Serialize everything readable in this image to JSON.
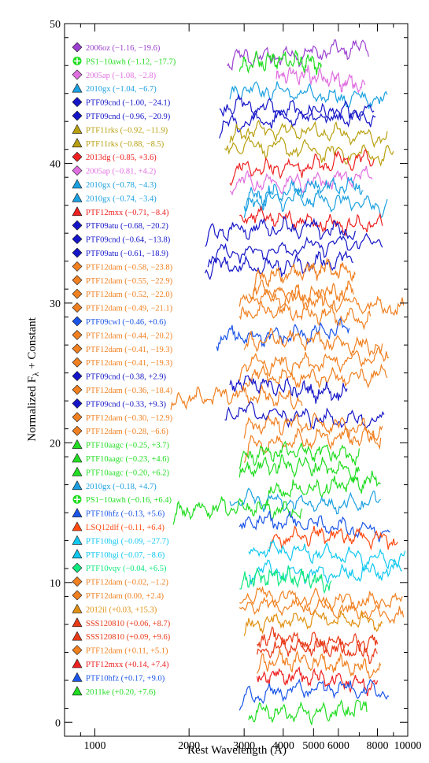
{
  "chart_data": {
    "type": "line",
    "title": "",
    "xlabel": "Rest Wavelength (Å)",
    "ylabel": "Normalized F",
    "ylabel_sub": "λ",
    "ylabel_suffix": " + Constant",
    "x_scale": "log",
    "xlim": [
      800,
      10000
    ],
    "ylim": [
      -1,
      50
    ],
    "x_ticks": [
      1000,
      2000,
      3000,
      4000,
      5000,
      6000,
      8000,
      10000
    ],
    "x_tick_labels": [
      "1000",
      "2000",
      "3000",
      "4000",
      "5000",
      "6000",
      "8000",
      "10000"
    ],
    "y_ticks": [
      0,
      10,
      20,
      30,
      40,
      50
    ],
    "y_tick_labels": [
      "0",
      "10",
      "20",
      "30",
      "40",
      "50"
    ],
    "legend_placement": "left",
    "series": [
      {
        "label": "2006oz (−1.16, −19.6)",
        "color": "#9b40d0",
        "marker": "diamond",
        "y": 48.0,
        "x_range": [
          2650,
          7500
        ]
      },
      {
        "label": "PS1−10awh (−1.12, −17.7)",
        "color": "#22dd22",
        "marker": "cross",
        "y": 47.0,
        "x_range": [
          2900,
          5300
        ]
      },
      {
        "label": "2005ap (−1.08, −2.8)",
        "color": "#e070e0",
        "marker": "diamond",
        "y": 46.0,
        "x_range": [
          3800,
          7300
        ]
      },
      {
        "label": "2010gx (−1.04, −6.7)",
        "color": "#1aa0e0",
        "marker": "triangle",
        "y": 45.0,
        "x_range": [
          2700,
          8600
        ]
      },
      {
        "label": "PTF09cnd (−1.00, −24.1)",
        "color": "#1515c8",
        "marker": "diamond",
        "y": 44.0,
        "x_range": [
          2500,
          7800
        ]
      },
      {
        "label": "PTF09cnd (−0.96, −20.9)",
        "color": "#1515c8",
        "marker": "diamond",
        "y": 43.0,
        "x_range": [
          2500,
          7900
        ]
      },
      {
        "label": "PTF11rks (−0.92, −11.9)",
        "color": "#b8a010",
        "marker": "triangle",
        "y": 42.0,
        "x_range": [
          2700,
          8600
        ]
      },
      {
        "label": "PTF11rks (−0.88, −8.5)",
        "color": "#b8a010",
        "marker": "triangle",
        "y": 41.0,
        "x_range": [
          2600,
          9000
        ]
      },
      {
        "label": "2013dg (−0.85, +3.6)",
        "color": "#ee2020",
        "marker": "diamond",
        "y": 40.0,
        "x_range": [
          2700,
          7800
        ]
      },
      {
        "label": "2005ap (−0.81, +4.2)",
        "color": "#e070e0",
        "marker": "diamond",
        "y": 39.0,
        "x_range": [
          2700,
          7700
        ]
      },
      {
        "label": "2010gx (−0.78, −4.3)",
        "color": "#1aa0e0",
        "marker": "triangle",
        "y": 38.0,
        "x_range": [
          3000,
          7200
        ]
      },
      {
        "label": "2010gx (−0.74, −3.4)",
        "color": "#1aa0e0",
        "marker": "triangle",
        "y": 37.0,
        "x_range": [
          3000,
          8600
        ]
      },
      {
        "label": "PTF12mxx (−0.71, −8.4)",
        "color": "#ee2020",
        "marker": "triangle",
        "y": 36.0,
        "x_range": [
          2900,
          8300
        ]
      },
      {
        "label": "PTF09atu (−0.68, −20.2)",
        "color": "#1515c8",
        "marker": "diamond",
        "y": 35.0,
        "x_range": [
          2250,
          6800
        ]
      },
      {
        "label": "PTF09cnd (−0.64, −13.8)",
        "color": "#1515c8",
        "marker": "diamond",
        "y": 34.0,
        "x_range": [
          2300,
          8300
        ]
      },
      {
        "label": "PTF09atu (−0.61, −18.9)",
        "color": "#1515c8",
        "marker": "diamond",
        "y": 33.0,
        "x_range": [
          2250,
          6700
        ]
      },
      {
        "label": "PTF12dam (−0.58, −23.8)",
        "color": "#f08020",
        "marker": "diamond",
        "y": 32.0,
        "x_range": [
          3200,
          6800
        ]
      },
      {
        "label": "PTF12dam (−0.55, −22.9)",
        "color": "#f08020",
        "marker": "diamond",
        "y": 31.0,
        "x_range": [
          3100,
          6700
        ]
      },
      {
        "label": "PTF12dam (−0.52, −22.0)",
        "color": "#f08020",
        "marker": "diamond",
        "y": 30.0,
        "x_range": [
          2900,
          9700
        ]
      },
      {
        "label": "PTF12dam (−0.49, −21.1)",
        "color": "#f08020",
        "marker": "diamond",
        "y": 29.0,
        "x_range": [
          2900,
          7600
        ]
      },
      {
        "label": "PTF09cwl (−0.46, +0.6)",
        "color": "#1a55e8",
        "marker": "diamond",
        "y": 28.0,
        "x_range": [
          2450,
          6500
        ]
      },
      {
        "label": "PTF12dam (−0.44, −20.2)",
        "color": "#f08020",
        "marker": "diamond",
        "y": 27.0,
        "x_range": [
          3000,
          8300
        ]
      },
      {
        "label": "PTF12dam (−0.41, −19.3)",
        "color": "#f08020",
        "marker": "diamond",
        "y": 26.0,
        "x_range": [
          2900,
          8700
        ]
      },
      {
        "label": "PTF12dam (−0.41, −19.3)",
        "color": "#f08020",
        "marker": "diamond",
        "y": 25.0,
        "x_range": [
          3000,
          8600
        ]
      },
      {
        "label": "PTF09cnd (−0.38, +2.9)",
        "color": "#1515c8",
        "marker": "diamond",
        "y": 24.0,
        "x_range": [
          2700,
          6400
        ]
      },
      {
        "label": "PTF12dam (−0.36, −18.4)",
        "color": "#f08020",
        "marker": "diamond",
        "y": 23.0,
        "x_range": [
          1750,
          4600
        ]
      },
      {
        "label": "PTF09cnd (−0.33, +9.3)",
        "color": "#1515c8",
        "marker": "diamond",
        "y": 22.0,
        "x_range": [
          2600,
          8400
        ]
      },
      {
        "label": "PTF12dam (−0.30, −12.9)",
        "color": "#f08020",
        "marker": "diamond",
        "y": 21.0,
        "x_range": [
          3000,
          8300
        ]
      },
      {
        "label": "PTF12dam (−0.28, −6.6)",
        "color": "#f08020",
        "marker": "diamond",
        "y": 20.0,
        "x_range": [
          3000,
          8200
        ]
      },
      {
        "label": "PTF10aagc (−0.25, +3.7)",
        "color": "#22dd22",
        "marker": "triangle",
        "y": 19.0,
        "x_range": [
          2900,
          7000
        ]
      },
      {
        "label": "PTF10aagc (−0.23, +4.6)",
        "color": "#22dd22",
        "marker": "triangle",
        "y": 18.0,
        "x_range": [
          2900,
          7000
        ]
      },
      {
        "label": "PTF10aagc (−0.20, +6.2)",
        "color": "#22dd22",
        "marker": "triangle",
        "y": 17.0,
        "x_range": [
          3500,
          8200
        ]
      },
      {
        "label": "2010gx (−0.18, +4.7)",
        "color": "#1aa0e0",
        "marker": "triangle",
        "y": 16.0,
        "x_range": [
          2700,
          8200
        ]
      },
      {
        "label": "PS1−10awh (−0.16, +6.4)",
        "color": "#22dd22",
        "marker": "cross",
        "y": 15.0,
        "x_range": [
          1780,
          4600
        ]
      },
      {
        "label": "PTF10hfz (−0.13, +5.6)",
        "color": "#1a55e8",
        "marker": "triangle",
        "y": 14.0,
        "x_range": [
          2900,
          8800
        ]
      },
      {
        "label": "LSQ12dlf (−0.11, +6.4)",
        "color": "#ff4a10",
        "marker": "triangle",
        "y": 13.0,
        "x_range": [
          3600,
          9300
        ]
      },
      {
        "label": "PTF10hgi (−0.09, −27.7)",
        "color": "#10c8f0",
        "marker": "triangle",
        "y": 12.0,
        "x_range": [
          3100,
          9800
        ]
      },
      {
        "label": "PTF10hgi (−0.07, −8.6)",
        "color": "#10c8f0",
        "marker": "triangle",
        "y": 11.0,
        "x_range": [
          3100,
          9600
        ]
      },
      {
        "label": "PTF10vqv (−0.04, +6.5)",
        "color": "#10e880",
        "marker": "diamond",
        "y": 10.0,
        "x_range": [
          2900,
          5700
        ]
      },
      {
        "label": "PTF12dam (−0.02, −1.2)",
        "color": "#f08020",
        "marker": "diamond",
        "y": 9.0,
        "x_range": [
          2900,
          9600
        ]
      },
      {
        "label": "PTF12dam (0.00, +2.4)",
        "color": "#f08020",
        "marker": "diamond",
        "y": 8.0,
        "x_range": [
          2900,
          9700
        ]
      },
      {
        "label": "2012il (+0.03, +15.3)",
        "color": "#e09010",
        "marker": "triangle",
        "y": 7.0,
        "x_range": [
          3000,
          8300
        ]
      },
      {
        "label": "SSS120810 (+0.06, +8.7)",
        "color": "#e83a18",
        "marker": "triangle",
        "y": 6.0,
        "x_range": [
          3300,
          8000
        ]
      },
      {
        "label": "SSS120810 (+0.09, +9.6)",
        "color": "#e83a18",
        "marker": "triangle",
        "y": 5.0,
        "x_range": [
          3300,
          8000
        ]
      },
      {
        "label": "PTF12dam (+0.11, +5.1)",
        "color": "#f08020",
        "marker": "diamond",
        "y": 4.0,
        "x_range": [
          3300,
          8200
        ]
      },
      {
        "label": "PTF12mxx (+0.14, +7.4)",
        "color": "#ee2020",
        "marker": "triangle",
        "y": 3.0,
        "x_range": [
          3300,
          8000
        ]
      },
      {
        "label": "PTF10hfz (+0.17, +9.0)",
        "color": "#1a55e8",
        "marker": "triangle",
        "y": 2.0,
        "x_range": [
          2900,
          8700
        ]
      },
      {
        "label": "2011ke (+0.20, +7.6)",
        "color": "#22dd22",
        "marker": "triangle",
        "y": 1.0,
        "x_range": [
          3100,
          7400
        ]
      }
    ]
  }
}
